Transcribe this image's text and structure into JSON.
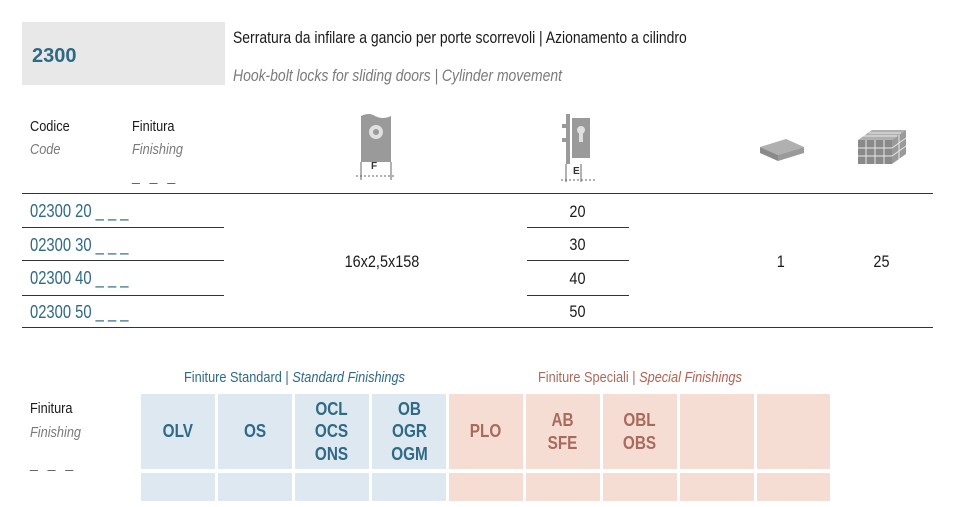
{
  "header": {
    "code": "2300",
    "title_it": "Serratura da infilare a gancio per porte scorrevoli | Azionamento a cilindro",
    "title_en": "Hook-bolt locks for sliding doors | Cylinder movement"
  },
  "columns": {
    "codice_it": "Codice",
    "codice_en": "Code",
    "finitura_it": "Finitura",
    "finitura_en": "Finishing",
    "finitura_placeholder": "_ _ _",
    "icon_faceplate_label": "F",
    "icon_backset_label": "E"
  },
  "table": {
    "rows": [
      {
        "code": "02300 20 _ _ _",
        "e": "20"
      },
      {
        "code": "02300 30 _ _ _",
        "e": "30"
      },
      {
        "code": "02300 40 _ _ _",
        "e": "40"
      },
      {
        "code": "02300 50 _ _ _",
        "e": "50"
      }
    ],
    "faceplate": "16x2,5x158",
    "box_qty": "1",
    "carton_qty": "25"
  },
  "finishes": {
    "standard_it": "Finiture Standard",
    "standard_en": "Standard Finishings",
    "special_it": "Finiture Speciali",
    "special_en": "Special Finishings",
    "label_it": "Finitura",
    "label_en": "Finishing",
    "label_placeholder": "_ _ _",
    "standard": [
      "OLV",
      "OS",
      "OCL\nOCS\nONS",
      "OB\nOGR\nOGM"
    ],
    "special": [
      "PLO",
      "AB\nSFE",
      "OBL\nOBS",
      "",
      ""
    ]
  },
  "colors": {
    "blue": "#2f6a85",
    "standard_bg": "#dde8f1",
    "special_bg": "#f6ddd4",
    "special_text": "#a96a5e"
  }
}
